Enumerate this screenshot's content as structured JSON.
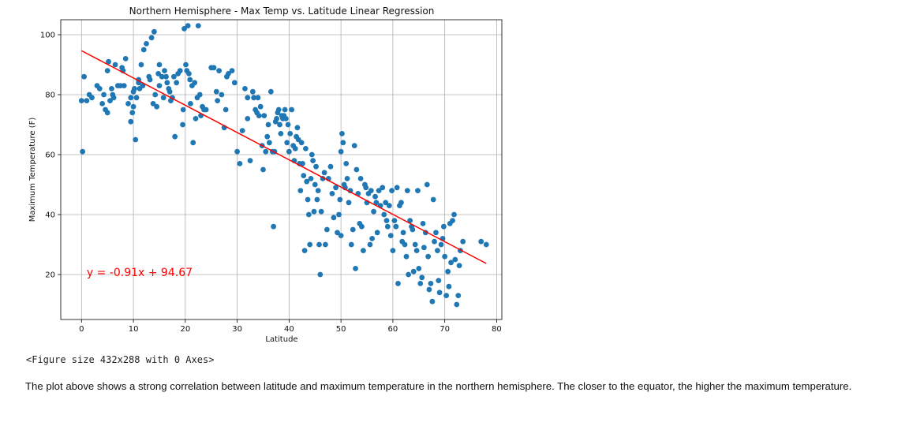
{
  "chart_data": {
    "type": "scatter",
    "title": "Northern Hemisphere - Max Temp vs. Latitude Linear Regression",
    "xlabel": "Latitude",
    "ylabel": "Maximum Temperature (F)",
    "xlim": [
      -4,
      81
    ],
    "ylim": [
      5,
      105
    ],
    "xticks": [
      0,
      10,
      20,
      30,
      40,
      50,
      60,
      70,
      80
    ],
    "yticks": [
      20,
      40,
      60,
      80,
      100
    ],
    "grid": true,
    "point_color": "#1f77b4",
    "line_color": "#ff0000",
    "regression": {
      "slope": -0.91,
      "intercept": 94.67,
      "x_range": [
        0,
        78
      ],
      "equation": "y = -0.91x + 94.67",
      "equation_pos": [
        1,
        20
      ]
    },
    "points": [
      [
        0,
        78
      ],
      [
        0.2,
        61
      ],
      [
        0.5,
        86
      ],
      [
        1,
        78
      ],
      [
        1.5,
        80
      ],
      [
        2,
        79
      ],
      [
        3,
        83
      ],
      [
        3.5,
        82
      ],
      [
        4,
        77
      ],
      [
        4.3,
        80
      ],
      [
        4.6,
        75
      ],
      [
        5,
        74
      ],
      [
        5,
        88
      ],
      [
        5.2,
        91
      ],
      [
        5.5,
        78
      ],
      [
        5.8,
        82
      ],
      [
        6,
        80
      ],
      [
        6.2,
        79
      ],
      [
        6.5,
        90
      ],
      [
        7,
        83
      ],
      [
        7.5,
        83
      ],
      [
        7.8,
        89
      ],
      [
        8,
        88
      ],
      [
        8.2,
        83
      ],
      [
        8.5,
        92
      ],
      [
        9,
        77
      ],
      [
        9.5,
        79
      ],
      [
        9.5,
        71
      ],
      [
        9.8,
        74
      ],
      [
        10,
        76
      ],
      [
        10,
        81
      ],
      [
        10.2,
        82
      ],
      [
        10.4,
        65
      ],
      [
        10.6,
        79
      ],
      [
        11,
        84
      ],
      [
        11,
        85
      ],
      [
        11.2,
        82
      ],
      [
        11.5,
        90
      ],
      [
        11.8,
        83
      ],
      [
        12,
        95
      ],
      [
        12.5,
        97
      ],
      [
        13,
        86
      ],
      [
        13.2,
        85
      ],
      [
        13.5,
        99
      ],
      [
        13.8,
        77
      ],
      [
        14,
        101
      ],
      [
        14.2,
        80
      ],
      [
        14.5,
        76
      ],
      [
        14.8,
        87
      ],
      [
        15,
        90
      ],
      [
        15,
        83
      ],
      [
        15.5,
        86
      ],
      [
        15.8,
        79
      ],
      [
        16,
        88
      ],
      [
        16.3,
        86
      ],
      [
        16.5,
        84
      ],
      [
        16.8,
        82
      ],
      [
        17,
        81
      ],
      [
        17.2,
        78
      ],
      [
        17.5,
        79
      ],
      [
        17.8,
        86
      ],
      [
        18,
        66
      ],
      [
        18.3,
        84
      ],
      [
        18.6,
        87
      ],
      [
        19,
        88
      ],
      [
        19.5,
        70
      ],
      [
        19.6,
        75
      ],
      [
        19.8,
        102
      ],
      [
        20.1,
        90
      ],
      [
        20.3,
        88
      ],
      [
        20.5,
        103
      ],
      [
        20.7,
        87
      ],
      [
        20.9,
        85
      ],
      [
        21,
        77
      ],
      [
        21.3,
        83
      ],
      [
        21.5,
        64
      ],
      [
        21.8,
        84
      ],
      [
        22,
        72
      ],
      [
        22.3,
        79
      ],
      [
        22.5,
        103
      ],
      [
        22.8,
        80
      ],
      [
        23,
        73
      ],
      [
        23.3,
        76
      ],
      [
        23.6,
        75
      ],
      [
        24,
        75
      ],
      [
        25,
        89
      ],
      [
        25.5,
        89
      ],
      [
        26,
        81
      ],
      [
        26.2,
        78
      ],
      [
        26.5,
        88
      ],
      [
        27,
        80
      ],
      [
        27.5,
        69
      ],
      [
        27.8,
        75
      ],
      [
        28,
        86
      ],
      [
        28.3,
        87
      ],
      [
        29,
        88
      ],
      [
        29.5,
        84
      ],
      [
        30,
        61
      ],
      [
        30.5,
        57
      ],
      [
        31,
        68
      ],
      [
        31.5,
        82
      ],
      [
        32,
        72
      ],
      [
        32,
        79
      ],
      [
        32.5,
        58
      ],
      [
        33,
        81
      ],
      [
        33.2,
        79
      ],
      [
        33.5,
        75
      ],
      [
        33.8,
        74
      ],
      [
        34,
        79
      ],
      [
        34.2,
        73
      ],
      [
        34.5,
        76
      ],
      [
        34.8,
        63
      ],
      [
        35,
        55
      ],
      [
        35.2,
        73
      ],
      [
        35.5,
        61
      ],
      [
        35.8,
        66
      ],
      [
        36,
        70
      ],
      [
        36.2,
        64
      ],
      [
        36.5,
        81
      ],
      [
        36.8,
        61
      ],
      [
        37,
        36
      ],
      [
        37.2,
        61
      ],
      [
        37.4,
        71
      ],
      [
        37.6,
        72
      ],
      [
        37.8,
        74
      ],
      [
        38,
        75
      ],
      [
        38.2,
        70
      ],
      [
        38.4,
        67
      ],
      [
        38.6,
        73
      ],
      [
        38.8,
        72
      ],
      [
        39,
        73
      ],
      [
        39.2,
        75
      ],
      [
        39.4,
        72
      ],
      [
        39.6,
        64
      ],
      [
        39.8,
        70
      ],
      [
        40,
        61
      ],
      [
        40.2,
        67
      ],
      [
        40.5,
        75
      ],
      [
        40.8,
        63
      ],
      [
        41,
        58
      ],
      [
        41.2,
        62
      ],
      [
        41.4,
        66
      ],
      [
        41.6,
        69
      ],
      [
        41.8,
        65
      ],
      [
        42,
        57
      ],
      [
        42.2,
        48
      ],
      [
        42.4,
        64
      ],
      [
        42.6,
        57
      ],
      [
        42.8,
        53
      ],
      [
        43,
        28
      ],
      [
        43.2,
        62
      ],
      [
        43.4,
        51
      ],
      [
        43.6,
        45
      ],
      [
        43.8,
        40
      ],
      [
        44,
        30
      ],
      [
        44.2,
        52
      ],
      [
        44.4,
        60
      ],
      [
        44.6,
        58
      ],
      [
        44.8,
        41
      ],
      [
        45,
        50
      ],
      [
        45.2,
        56
      ],
      [
        45.4,
        45
      ],
      [
        45.6,
        48
      ],
      [
        45.8,
        30
      ],
      [
        46,
        20
      ],
      [
        46.2,
        41
      ],
      [
        46.5,
        52
      ],
      [
        46.8,
        54
      ],
      [
        47,
        30
      ],
      [
        47.3,
        35
      ],
      [
        47.6,
        52
      ],
      [
        48,
        56
      ],
      [
        48.3,
        47
      ],
      [
        48.6,
        39
      ],
      [
        49,
        49
      ],
      [
        49.3,
        34
      ],
      [
        49.6,
        40
      ],
      [
        49.8,
        45
      ],
      [
        50,
        33
      ],
      [
        50,
        61
      ],
      [
        50.2,
        67
      ],
      [
        50.4,
        64
      ],
      [
        50.6,
        50
      ],
      [
        50.8,
        49
      ],
      [
        51,
        57
      ],
      [
        51.2,
        52
      ],
      [
        51.5,
        44
      ],
      [
        51.8,
        48
      ],
      [
        52,
        30
      ],
      [
        52.3,
        35
      ],
      [
        52.6,
        63
      ],
      [
        52.8,
        22
      ],
      [
        53,
        55
      ],
      [
        53.3,
        47
      ],
      [
        53.6,
        37
      ],
      [
        53.8,
        52
      ],
      [
        54,
        36
      ],
      [
        54.3,
        28
      ],
      [
        54.6,
        50
      ],
      [
        54.8,
        49
      ],
      [
        55,
        44
      ],
      [
        55.3,
        47
      ],
      [
        55.6,
        30
      ],
      [
        55.8,
        48
      ],
      [
        56,
        32
      ],
      [
        56.3,
        41
      ],
      [
        56.6,
        46
      ],
      [
        56.8,
        44
      ],
      [
        57,
        34
      ],
      [
        57.3,
        48
      ],
      [
        57.6,
        43
      ],
      [
        58,
        49
      ],
      [
        58.3,
        40
      ],
      [
        58.6,
        44
      ],
      [
        58.8,
        38
      ],
      [
        59,
        36
      ],
      [
        59.3,
        43
      ],
      [
        59.6,
        33
      ],
      [
        59.8,
        48
      ],
      [
        60,
        28
      ],
      [
        60.3,
        38
      ],
      [
        60.6,
        36
      ],
      [
        60.8,
        49
      ],
      [
        61,
        17
      ],
      [
        61.3,
        43
      ],
      [
        61.6,
        44
      ],
      [
        61.8,
        31
      ],
      [
        62,
        34
      ],
      [
        62.3,
        30
      ],
      [
        62.6,
        26
      ],
      [
        62.8,
        48
      ],
      [
        63,
        20
      ],
      [
        63.3,
        38
      ],
      [
        63.6,
        36
      ],
      [
        63.8,
        35
      ],
      [
        64,
        21
      ],
      [
        64.3,
        30
      ],
      [
        64.6,
        28
      ],
      [
        64.8,
        48
      ],
      [
        65,
        22
      ],
      [
        65.3,
        17
      ],
      [
        65.6,
        19
      ],
      [
        65.8,
        37
      ],
      [
        66,
        29
      ],
      [
        66.3,
        34
      ],
      [
        66.6,
        50
      ],
      [
        66.8,
        26
      ],
      [
        67,
        15
      ],
      [
        67.3,
        17
      ],
      [
        67.6,
        11
      ],
      [
        67.8,
        45
      ],
      [
        68,
        31
      ],
      [
        68.3,
        34
      ],
      [
        68.6,
        28
      ],
      [
        68.8,
        18
      ],
      [
        69,
        14
      ],
      [
        69.3,
        30
      ],
      [
        69.6,
        32
      ],
      [
        69.8,
        36
      ],
      [
        70,
        26
      ],
      [
        70.3,
        13
      ],
      [
        70.6,
        21
      ],
      [
        70.8,
        16
      ],
      [
        71,
        37
      ],
      [
        71.2,
        24
      ],
      [
        71.5,
        38
      ],
      [
        71.8,
        40
      ],
      [
        72,
        25
      ],
      [
        72.3,
        10
      ],
      [
        72.6,
        13
      ],
      [
        72.8,
        23
      ],
      [
        73,
        28
      ],
      [
        73.5,
        31
      ],
      [
        77,
        31
      ],
      [
        78,
        30
      ]
    ]
  },
  "figure_output": "<Figure size 432x288 with 0 Axes>",
  "description": "The plot above shows a strong correlation between latitude and maximum temperature in the northern hemisphere. The closer to the equator, the higher the maximum temperature."
}
